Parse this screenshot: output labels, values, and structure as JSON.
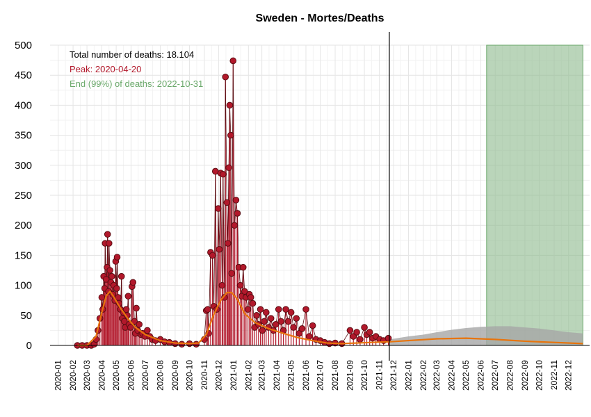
{
  "chart_data": {
    "type": "line",
    "title": "Sweden - Mortes/Deaths",
    "xlabel": "",
    "ylabel": "",
    "ylim": [
      0,
      500
    ],
    "yticks": [
      0,
      50,
      100,
      150,
      200,
      250,
      300,
      350,
      400,
      450,
      500
    ],
    "xticks": [
      "2020-01",
      "2020-02",
      "2020-03",
      "2020-04",
      "2020-05",
      "2020-06",
      "2020-07",
      "2020-08",
      "2020-09",
      "2020-10",
      "2020-11",
      "2020-12",
      "2021-01",
      "2021-02",
      "2021-03",
      "2021-04",
      "2021-05",
      "2021-06",
      "2021-07",
      "2021-08",
      "2021-09",
      "2021-10",
      "2021-11",
      "2021-12",
      "2022-01",
      "2022-02",
      "2022-03",
      "2022-04",
      "2022-05",
      "2022-06",
      "2022-07",
      "2022-08",
      "2022-09",
      "2022-10",
      "2022-11",
      "2022-12"
    ],
    "grid": true,
    "annotations": {
      "total": "Total number of deaths: 18.104",
      "peak": "Peak: 2020-04-20",
      "end": "End (99%) of deaths: 2022-10-31"
    },
    "colors": {
      "observed": "#b2182b",
      "observed_edge": "#5a0d12",
      "smooth": "#e8740c",
      "forecast_band": "#a6a6a6",
      "end_band": "#8fbc8f",
      "annotation_total": "#000000",
      "annotation_peak": "#b2182b",
      "annotation_end": "#6aa86a"
    },
    "current_date": "2021-11-22",
    "end_band_range": [
      "2022-06-13",
      "2022-12-31"
    ],
    "series": [
      {
        "kind": "observed_daily",
        "points": [
          [
            "2020-02-10",
            0
          ],
          [
            "2020-02-20",
            0
          ],
          [
            "2020-03-01",
            0
          ],
          [
            "2020-03-10",
            0
          ],
          [
            "2020-03-16",
            2
          ],
          [
            "2020-03-20",
            10
          ],
          [
            "2020-03-24",
            25
          ],
          [
            "2020-03-28",
            45
          ],
          [
            "2020-04-01",
            80
          ],
          [
            "2020-04-03",
            60
          ],
          [
            "2020-04-05",
            115
          ],
          [
            "2020-04-07",
            95
          ],
          [
            "2020-04-08",
            170
          ],
          [
            "2020-04-10",
            110
          ],
          [
            "2020-04-12",
            130
          ],
          [
            "2020-04-13",
            185
          ],
          [
            "2020-04-15",
            90
          ],
          [
            "2020-04-16",
            170
          ],
          [
            "2020-04-18",
            125
          ],
          [
            "2020-04-20",
            105
          ],
          [
            "2020-04-22",
            115
          ],
          [
            "2020-04-24",
            85
          ],
          [
            "2020-04-26",
            100
          ],
          [
            "2020-04-28",
            75
          ],
          [
            "2020-04-30",
            140
          ],
          [
            "2020-05-02",
            95
          ],
          [
            "2020-05-03",
            147
          ],
          [
            "2020-05-05",
            80
          ],
          [
            "2020-05-07",
            70
          ],
          [
            "2020-05-10",
            60
          ],
          [
            "2020-05-12",
            115
          ],
          [
            "2020-05-14",
            45
          ],
          [
            "2020-05-16",
            55
          ],
          [
            "2020-05-18",
            40
          ],
          [
            "2020-05-20",
            30
          ],
          [
            "2020-05-22",
            60
          ],
          [
            "2020-05-24",
            50
          ],
          [
            "2020-05-26",
            82
          ],
          [
            "2020-05-28",
            35
          ],
          [
            "2020-05-31",
            30
          ],
          [
            "2020-06-03",
            98
          ],
          [
            "2020-06-05",
            105
          ],
          [
            "2020-06-08",
            40
          ],
          [
            "2020-06-10",
            20
          ],
          [
            "2020-06-12",
            62
          ],
          [
            "2020-06-15",
            25
          ],
          [
            "2020-06-18",
            35
          ],
          [
            "2020-06-22",
            18
          ],
          [
            "2020-06-25",
            20
          ],
          [
            "2020-06-30",
            15
          ],
          [
            "2020-07-05",
            25
          ],
          [
            "2020-07-10",
            15
          ],
          [
            "2020-07-15",
            10
          ],
          [
            "2020-07-22",
            8
          ],
          [
            "2020-08-01",
            10
          ],
          [
            "2020-08-10",
            6
          ],
          [
            "2020-08-20",
            5
          ],
          [
            "2020-09-01",
            3
          ],
          [
            "2020-09-15",
            2
          ],
          [
            "2020-10-01",
            3
          ],
          [
            "2020-10-15",
            2
          ],
          [
            "2020-11-01",
            10
          ],
          [
            "2020-11-05",
            58
          ],
          [
            "2020-11-08",
            60
          ],
          [
            "2020-11-10",
            20
          ],
          [
            "2020-11-14",
            155
          ],
          [
            "2020-11-18",
            150
          ],
          [
            "2020-11-21",
            65
          ],
          [
            "2020-11-24",
            290
          ],
          [
            "2020-11-27",
            60
          ],
          [
            "2020-11-30",
            228
          ],
          [
            "2020-12-02",
            160
          ],
          [
            "2020-12-05",
            287
          ],
          [
            "2020-12-08",
            100
          ],
          [
            "2020-12-10",
            285
          ],
          [
            "2020-12-13",
            80
          ],
          [
            "2020-12-15",
            447
          ],
          [
            "2020-12-18",
            238
          ],
          [
            "2020-12-20",
            170
          ],
          [
            "2020-12-22",
            296
          ],
          [
            "2020-12-24",
            400
          ],
          [
            "2020-12-26",
            350
          ],
          [
            "2020-12-28",
            120
          ],
          [
            "2020-12-31",
            474
          ],
          [
            "2021-01-03",
            200
          ],
          [
            "2021-01-06",
            242
          ],
          [
            "2021-01-09",
            220
          ],
          [
            "2021-01-12",
            130
          ],
          [
            "2021-01-15",
            100
          ],
          [
            "2021-01-18",
            82
          ],
          [
            "2021-01-21",
            130
          ],
          [
            "2021-01-24",
            90
          ],
          [
            "2021-01-27",
            80
          ],
          [
            "2021-01-31",
            60
          ],
          [
            "2021-02-03",
            85
          ],
          [
            "2021-02-06",
            80
          ],
          [
            "2021-02-10",
            70
          ],
          [
            "2021-02-14",
            30
          ],
          [
            "2021-02-18",
            50
          ],
          [
            "2021-02-22",
            35
          ],
          [
            "2021-02-26",
            60
          ],
          [
            "2021-03-02",
            25
          ],
          [
            "2021-03-06",
            40
          ],
          [
            "2021-03-10",
            55
          ],
          [
            "2021-03-15",
            30
          ],
          [
            "2021-03-20",
            45
          ],
          [
            "2021-03-25",
            25
          ],
          [
            "2021-03-30",
            35
          ],
          [
            "2021-04-05",
            60
          ],
          [
            "2021-04-10",
            40
          ],
          [
            "2021-04-15",
            25
          ],
          [
            "2021-04-20",
            60
          ],
          [
            "2021-04-25",
            40
          ],
          [
            "2021-05-01",
            55
          ],
          [
            "2021-05-06",
            30
          ],
          [
            "2021-05-12",
            45
          ],
          [
            "2021-05-18",
            20
          ],
          [
            "2021-05-24",
            28
          ],
          [
            "2021-06-01",
            60
          ],
          [
            "2021-06-08",
            15
          ],
          [
            "2021-06-15",
            33
          ],
          [
            "2021-06-22",
            10
          ],
          [
            "2021-07-01",
            8
          ],
          [
            "2021-07-10",
            5
          ],
          [
            "2021-07-20",
            3
          ],
          [
            "2021-08-01",
            4
          ],
          [
            "2021-08-15",
            3
          ],
          [
            "2021-09-01",
            25
          ],
          [
            "2021-09-08",
            15
          ],
          [
            "2021-09-15",
            22
          ],
          [
            "2021-09-22",
            10
          ],
          [
            "2021-10-01",
            30
          ],
          [
            "2021-10-06",
            18
          ],
          [
            "2021-10-12",
            22
          ],
          [
            "2021-10-18",
            12
          ],
          [
            "2021-10-25",
            15
          ],
          [
            "2021-11-02",
            10
          ],
          [
            "2021-11-10",
            8
          ],
          [
            "2021-11-20",
            12
          ]
        ]
      },
      {
        "kind": "smoothed",
        "points": [
          [
            "2020-02-10",
            0
          ],
          [
            "2020-03-01",
            0
          ],
          [
            "2020-03-20",
            15
          ],
          [
            "2020-04-01",
            55
          ],
          [
            "2020-04-10",
            82
          ],
          [
            "2020-04-18",
            90
          ],
          [
            "2020-04-25",
            82
          ],
          [
            "2020-05-10",
            62
          ],
          [
            "2020-05-25",
            45
          ],
          [
            "2020-06-10",
            30
          ],
          [
            "2020-07-01",
            18
          ],
          [
            "2020-08-01",
            8
          ],
          [
            "2020-09-01",
            4
          ],
          [
            "2020-10-01",
            3
          ],
          [
            "2020-10-20",
            4
          ],
          [
            "2020-11-05",
            18
          ],
          [
            "2020-11-20",
            50
          ],
          [
            "2020-12-05",
            75
          ],
          [
            "2020-12-18",
            88
          ],
          [
            "2020-12-28",
            88
          ],
          [
            "2021-01-08",
            78
          ],
          [
            "2021-01-25",
            52
          ],
          [
            "2021-02-15",
            38
          ],
          [
            "2021-03-15",
            28
          ],
          [
            "2021-04-15",
            20
          ],
          [
            "2021-05-15",
            13
          ],
          [
            "2021-06-15",
            8
          ],
          [
            "2021-07-15",
            4
          ],
          [
            "2021-08-15",
            3
          ],
          [
            "2021-09-15",
            4
          ],
          [
            "2021-10-15",
            5
          ],
          [
            "2021-11-22",
            6
          ],
          [
            "2022-01-01",
            8
          ],
          [
            "2022-03-01",
            11
          ],
          [
            "2022-05-01",
            12
          ],
          [
            "2022-07-01",
            10
          ],
          [
            "2022-09-01",
            7
          ],
          [
            "2022-11-01",
            5
          ],
          [
            "2022-12-31",
            3
          ]
        ]
      },
      {
        "kind": "forecast_upper",
        "points": [
          [
            "2021-11-22",
            10
          ],
          [
            "2022-01-01",
            15
          ],
          [
            "2022-02-01",
            18
          ],
          [
            "2022-03-01",
            22
          ],
          [
            "2022-04-01",
            26
          ],
          [
            "2022-05-01",
            29
          ],
          [
            "2022-06-01",
            31
          ],
          [
            "2022-07-01",
            32
          ],
          [
            "2022-08-01",
            32
          ],
          [
            "2022-09-01",
            30
          ],
          [
            "2022-10-01",
            28
          ],
          [
            "2022-11-01",
            25
          ],
          [
            "2022-12-01",
            22
          ],
          [
            "2022-12-31",
            20
          ]
        ]
      }
    ]
  }
}
